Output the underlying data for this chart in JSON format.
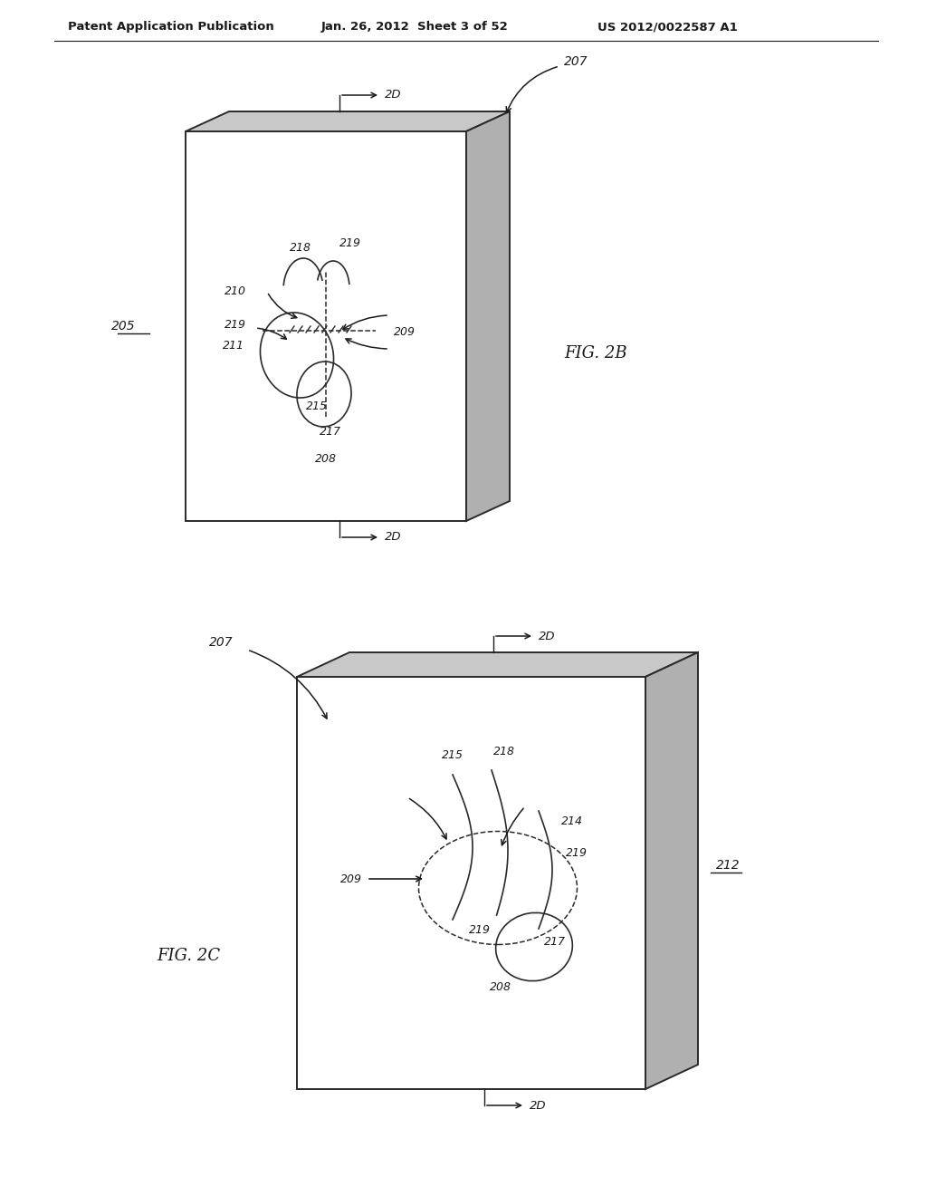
{
  "bg_color": "#ffffff",
  "header_text": "Patent Application Publication",
  "header_date": "Jan. 26, 2012  Sheet 3 of 52",
  "header_patent": "US 2012/0022587 A1",
  "fig2b_label": "FIG. 2B",
  "fig2c_label": "FIG. 2C",
  "label_205": "205",
  "label_207_top": "207",
  "label_207_bot": "207",
  "label_208_top": "208",
  "label_208_bot": "208",
  "label_209_top": "209",
  "label_209_bot": "209",
  "label_210": "210",
  "label_211": "211",
  "label_212": "212",
  "label_214": "214",
  "label_215_top": "215",
  "label_215_bot": "215",
  "label_217_top": "217",
  "label_217_bot": "217",
  "label_218_top": "218",
  "label_218_bot": "218",
  "label_219_top1": "219",
  "label_219_top2": "219",
  "label_219_bot1": "219",
  "label_219_bot2": "219",
  "label_2D": "2D",
  "line_color": "#2a2a2a",
  "text_color": "#1a1a1a",
  "top_gray": "#c8c8c8",
  "side_gray": "#b0b0b0"
}
